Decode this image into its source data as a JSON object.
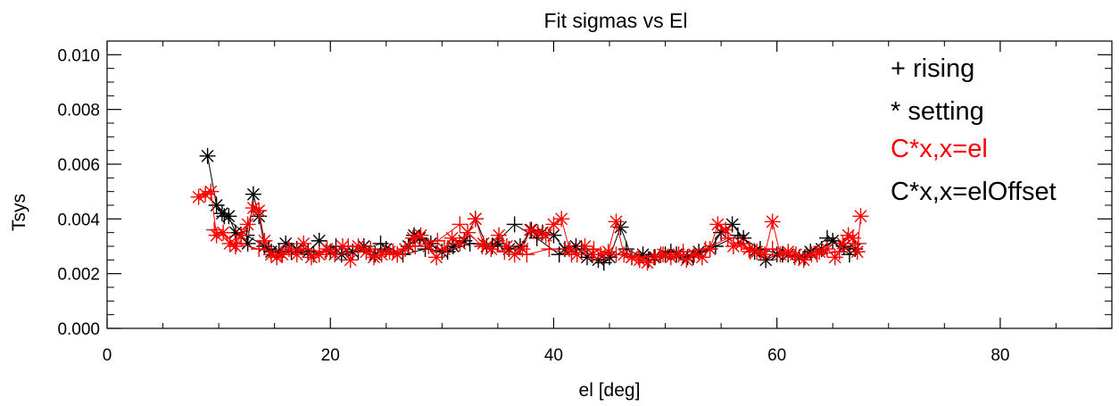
{
  "chart_data": {
    "type": "scatter",
    "title": "Fit sigmas vs El",
    "xlabel": "el [deg]",
    "ylabel": "Tsys",
    "xlim": [
      0,
      90
    ],
    "ylim": [
      0.0,
      0.0105
    ],
    "x_ticks": [
      0,
      20,
      40,
      60,
      80
    ],
    "x_tick_labels": [
      "0",
      "20",
      "40",
      "60",
      "80"
    ],
    "y_ticks": [
      0.0,
      0.002,
      0.004,
      0.006,
      0.008,
      0.01
    ],
    "y_tick_labels": [
      "0.000",
      "0.002",
      "0.004",
      "0.006",
      "0.008",
      "0.010"
    ],
    "grid": false,
    "legend_position": "top-right",
    "legend": [
      {
        "text": "+ rising",
        "color": "#000000"
      },
      {
        "text": "* setting",
        "color": "#000000"
      },
      {
        "text": "C*x,x=el",
        "color": "#ff0000"
      },
      {
        "text": "C*x,x=elOffset",
        "color": "#000000"
      }
    ],
    "series": [
      {
        "color": "#000000",
        "marker": "asterisk",
        "x": [
          9.0,
          9.8,
          10.3,
          10.9,
          11.5,
          12.0,
          12.6,
          13.1,
          13.6,
          14.1,
          14.7,
          15.4,
          16.0,
          17.0,
          18.0,
          19.0,
          20.0,
          21.0,
          22.0,
          23.0,
          24.0,
          25.0,
          26.0,
          27.0,
          27.5,
          28.0,
          29.0,
          30.0,
          31.0,
          32.0,
          33.0,
          34.0,
          35.0,
          36.0,
          37.0,
          38.0,
          39.0,
          40.0,
          41.0,
          42.0,
          43.0,
          44.0,
          45.0,
          46.0,
          47.0,
          48.0,
          49.0,
          50.0,
          51.0,
          52.0,
          53.0,
          54.0,
          55.0,
          56.0,
          57.0,
          58.0,
          59.0,
          60.0,
          61.0,
          62.0,
          63.0,
          64.0,
          65.0,
          66.0,
          67.0
        ],
        "y": [
          0.0063,
          0.0045,
          0.0042,
          0.0041,
          0.0035,
          0.0034,
          0.0031,
          0.0049,
          0.0041,
          0.003,
          0.0028,
          0.0028,
          0.0031,
          0.0029,
          0.0028,
          0.0032,
          0.0028,
          0.0027,
          0.0028,
          0.003,
          0.0027,
          0.0029,
          0.0027,
          0.003,
          0.0034,
          0.0033,
          0.0031,
          0.0028,
          0.003,
          0.0032,
          0.004,
          0.003,
          0.0031,
          0.0029,
          0.003,
          0.0036,
          0.0035,
          0.0034,
          0.0029,
          0.003,
          0.0026,
          0.0025,
          0.0026,
          0.0037,
          0.0026,
          0.0027,
          0.0026,
          0.0027,
          0.0027,
          0.0026,
          0.0028,
          0.0029,
          0.0035,
          0.0038,
          0.0033,
          0.0028,
          0.0025,
          0.0027,
          0.0027,
          0.0026,
          0.0028,
          0.0029,
          0.0032,
          0.003,
          0.0029
        ]
      },
      {
        "color": "#000000",
        "marker": "plus",
        "x": [
          10.5,
          12.5,
          14.5,
          16.5,
          18.5,
          20.5,
          22.5,
          24.5,
          26.5,
          28.5,
          30.5,
          32.5,
          34.5,
          36.5,
          38.5,
          40.5,
          42.5,
          44.5,
          46.5,
          48.5,
          50.5,
          52.5,
          54.5,
          56.5,
          58.5,
          60.5,
          62.5,
          64.5,
          66.5
        ],
        "y": [
          0.0041,
          0.0034,
          0.0029,
          0.0028,
          0.0027,
          0.003,
          0.0028,
          0.0031,
          0.0027,
          0.0029,
          0.0028,
          0.0031,
          0.003,
          0.0038,
          0.0033,
          0.0027,
          0.0029,
          0.0024,
          0.0029,
          0.0025,
          0.0028,
          0.0026,
          0.003,
          0.0034,
          0.0029,
          0.0027,
          0.0026,
          0.0033,
          0.0027
        ]
      },
      {
        "color": "#ff0000",
        "marker": "asterisk",
        "x": [
          8.2,
          8.8,
          9.3,
          9.8,
          10.4,
          11.0,
          11.5,
          12.0,
          12.6,
          13.1,
          13.6,
          14.1,
          14.7,
          15.2,
          15.7,
          16.3,
          17.0,
          17.6,
          18.3,
          19.0,
          19.7,
          20.4,
          21.1,
          21.8,
          22.5,
          23.2,
          23.9,
          24.6,
          25.3,
          26.0,
          26.7,
          27.4,
          28.1,
          28.8,
          29.5,
          30.2,
          30.9,
          31.6,
          32.3,
          33.0,
          33.7,
          34.4,
          35.1,
          35.8,
          36.5,
          37.2,
          37.9,
          38.6,
          39.3,
          40.0,
          40.7,
          41.4,
          42.1,
          42.8,
          43.5,
          44.2,
          44.9,
          45.6,
          46.3,
          47.0,
          47.7,
          48.4,
          49.1,
          49.8,
          50.5,
          51.2,
          51.9,
          52.6,
          53.3,
          54.0,
          54.7,
          55.4,
          56.1,
          56.8,
          57.5,
          58.2,
          58.9,
          59.6,
          60.3,
          61.0,
          61.7,
          62.4,
          63.1,
          63.8,
          64.5,
          65.2,
          65.9,
          66.4,
          66.8,
          67.2,
          67.5
        ],
        "y": [
          0.0048,
          0.0049,
          0.005,
          0.0034,
          0.0035,
          0.0031,
          0.003,
          0.0034,
          0.0038,
          0.0044,
          0.0043,
          0.0032,
          0.0027,
          0.0026,
          0.0027,
          0.0029,
          0.0027,
          0.0031,
          0.0026,
          0.0027,
          0.0029,
          0.0027,
          0.003,
          0.0025,
          0.003,
          0.0028,
          0.0026,
          0.0027,
          0.0028,
          0.0027,
          0.0029,
          0.0033,
          0.0034,
          0.003,
          0.0026,
          0.0029,
          0.0033,
          0.0031,
          0.0035,
          0.004,
          0.0031,
          0.0029,
          0.0034,
          0.003,
          0.0027,
          0.0029,
          0.0036,
          0.0035,
          0.0034,
          0.0038,
          0.004,
          0.0029,
          0.0027,
          0.003,
          0.0027,
          0.0027,
          0.0028,
          0.0039,
          0.0027,
          0.0026,
          0.0025,
          0.0024,
          0.0026,
          0.0027,
          0.0026,
          0.0027,
          0.0025,
          0.0027,
          0.0026,
          0.0029,
          0.0038,
          0.0036,
          0.003,
          0.0031,
          0.0029,
          0.0028,
          0.0027,
          0.0039,
          0.0027,
          0.0028,
          0.0027,
          0.0025,
          0.0027,
          0.0028,
          0.0029,
          0.0026,
          0.0031,
          0.0034,
          0.0033,
          0.0028,
          0.0041
        ]
      },
      {
        "color": "#ff0000",
        "marker": "plus",
        "x": [
          9.6,
          11.6,
          13.6,
          15.6,
          17.6,
          19.6,
          21.6,
          23.6,
          25.6,
          27.6,
          29.6,
          31.6,
          33.6,
          35.6,
          37.6,
          39.6,
          41.6,
          43.6,
          45.6,
          47.6,
          49.6,
          51.6,
          53.6,
          55.6,
          57.6,
          59.6,
          61.6,
          63.6,
          65.6,
          67.3
        ],
        "y": [
          0.0036,
          0.0031,
          0.0029,
          0.0027,
          0.0029,
          0.0028,
          0.003,
          0.0029,
          0.0028,
          0.003,
          0.0032,
          0.0038,
          0.003,
          0.0028,
          0.0027,
          0.0029,
          0.0027,
          0.0029,
          0.0027,
          0.0026,
          0.0027,
          0.0028,
          0.0029,
          0.0033,
          0.0028,
          0.0029,
          0.0026,
          0.0027,
          0.0028,
          0.0031
        ]
      }
    ]
  }
}
